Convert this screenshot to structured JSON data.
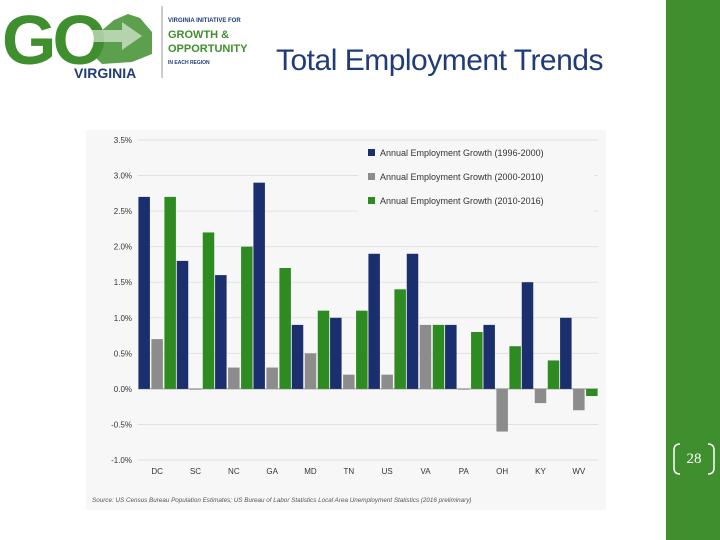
{
  "logo": {
    "go": "GO",
    "state": "VIRGINIA",
    "line1": "VIRGINIA INITIATIVE FOR",
    "line2": "GROWTH &",
    "line3": "OPPORTUNITY",
    "line4": "IN EACH REGION"
  },
  "slide": {
    "title": "Total Employment Trends",
    "page_number": "28"
  },
  "colors": {
    "accent_green": "#3f8f2e",
    "title_blue": "#1f3b7a",
    "series_navy": "#1b2f6e",
    "series_gray": "#8c8c8c",
    "series_green": "#2e8b22"
  },
  "chart_data": {
    "type": "bar",
    "categories": [
      "DC",
      "SC",
      "NC",
      "GA",
      "MD",
      "TN",
      "US",
      "VA",
      "PA",
      "OH",
      "KY",
      "WV"
    ],
    "series": [
      {
        "name": "Annual Employment Growth (1996-2000)",
        "values": [
          2.7,
          1.8,
          1.6,
          2.9,
          0.9,
          1.0,
          1.9,
          1.9,
          0.9,
          0.9,
          1.5,
          1.0
        ]
      },
      {
        "name": "Annual Employment Growth (2000-2010)",
        "values": [
          0.7,
          0.0,
          0.3,
          0.3,
          0.5,
          0.2,
          0.2,
          0.9,
          0.0,
          -0.6,
          -0.2,
          -0.3
        ]
      },
      {
        "name": "Annual Employment Growth (2010-2016)",
        "values": [
          2.7,
          2.2,
          2.0,
          1.7,
          1.1,
          1.1,
          1.4,
          0.9,
          0.8,
          0.6,
          0.4,
          -0.1
        ]
      }
    ],
    "y_ticks": [
      "3.5%",
      "3.0%",
      "2.5%",
      "2.0%",
      "1.5%",
      "1.0%",
      "0.5%",
      "0.0%",
      "-0.5%",
      "-1.0%"
    ],
    "ylim": [
      -1.0,
      3.5
    ],
    "legend_position": "top-right",
    "grid": true,
    "source": "Source: US Census Bureau Population Estimates; US Bureau of Labor Statistics Local Area Unemployment Statistics (2016 preliminary)"
  }
}
